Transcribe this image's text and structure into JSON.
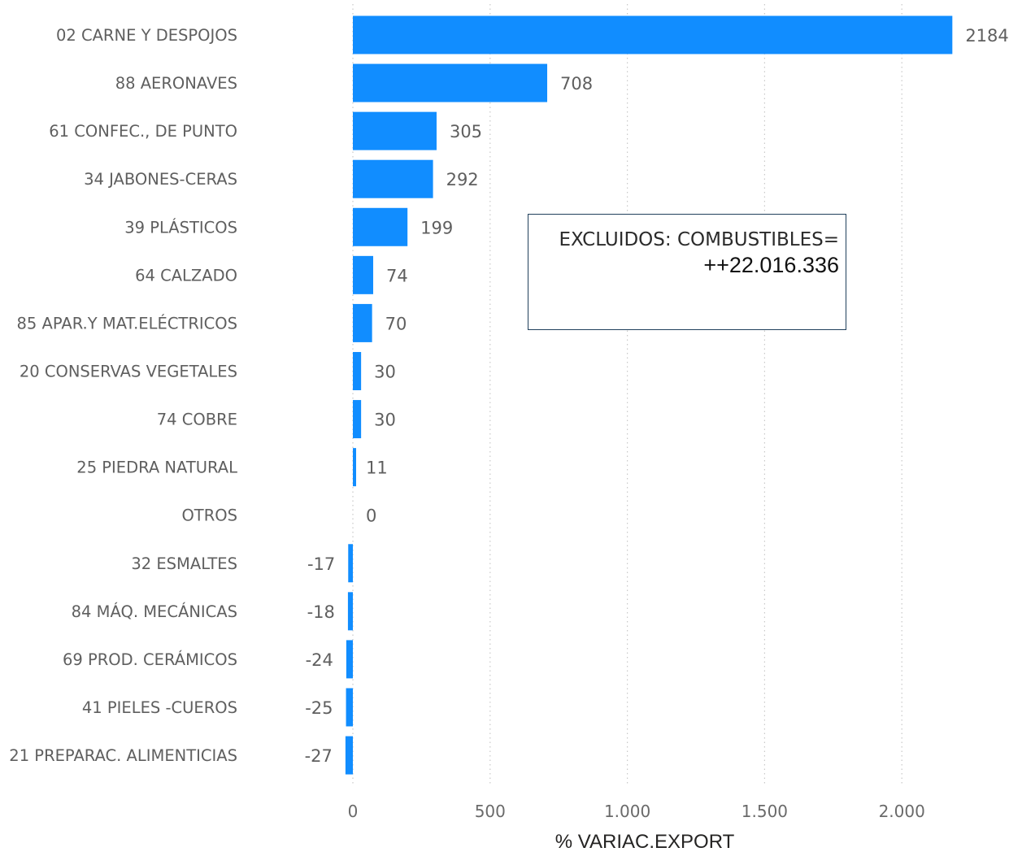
{
  "chart_data": {
    "type": "bar",
    "orientation": "horizontal",
    "categories": [
      "02 CARNE Y DESPOJOS",
      "88 AERONAVES",
      "61 CONFEC., DE PUNTO",
      "34 JABONES-CERAS",
      "39 PLÁSTICOS",
      "64 CALZADO",
      "85 APAR.Y MAT.ELÉCTRICOS",
      "20 CONSERVAS VEGETALES",
      "74 COBRE",
      "25 PIEDRA NATURAL",
      "OTROS",
      "32 ESMALTES",
      "84 MÁQ. MECÁNICAS",
      "69 PROD. CERÁMICOS",
      "41 PIELES -CUEROS",
      "21 PREPARAC. ALIMENTICIAS"
    ],
    "values": [
      2184,
      708,
      305,
      292,
      199,
      74,
      70,
      30,
      30,
      11,
      0,
      -17,
      -18,
      -24,
      -25,
      -27
    ],
    "value_labels": [
      "2184",
      "708",
      "305",
      "292",
      "199",
      "74",
      "70",
      "30",
      "30",
      "11",
      "0",
      "-17",
      "-18",
      "-24",
      "-25",
      "-27"
    ],
    "xlabel": "% VARIAC.EXPORT",
    "xticks": [
      0,
      500,
      1000,
      1500,
      2000
    ],
    "xtick_labels": [
      "0",
      "500",
      "1.000",
      "1.500",
      "2.000"
    ],
    "xlim": [
      -30,
      2184
    ],
    "grid": true,
    "bar_color": "#118dff"
  },
  "note": {
    "line1": "EXCLUIDOS: COMBUSTIBLES=",
    "line2": "++22.016.336"
  }
}
